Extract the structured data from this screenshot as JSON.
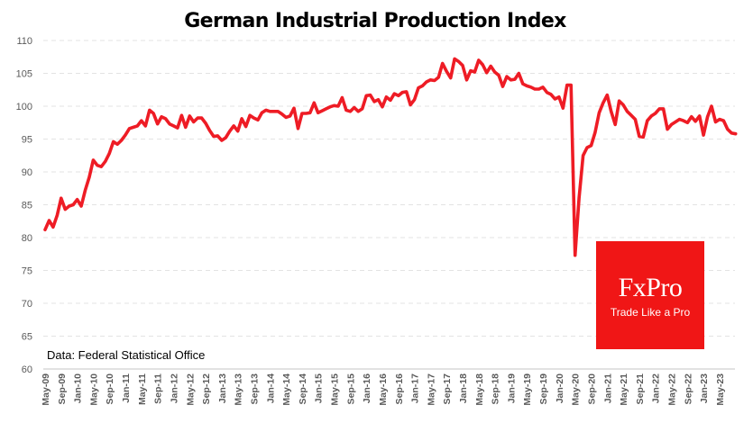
{
  "chart_data": {
    "type": "line",
    "title": "German Industrial Production Index",
    "xlabel": "",
    "ylabel": "",
    "ylim": [
      60,
      110
    ],
    "yticks": [
      60,
      65,
      70,
      75,
      80,
      85,
      90,
      95,
      100,
      105,
      110
    ],
    "grid": true,
    "legend": "none",
    "annotation": "Data: Federal Statistical Office",
    "start": "May-09",
    "frequency": "monthly",
    "x_tick_labels": [
      "May-09",
      "Sep-09",
      "Jan-10",
      "May-10",
      "Sep-10",
      "Jan-11",
      "May-11",
      "Sep-11",
      "Jan-12",
      "May-12",
      "Sep-12",
      "Jan-13",
      "May-13",
      "Sep-13",
      "Jan-14",
      "May-14",
      "Sep-14",
      "Jan-15",
      "May-15",
      "Sep-15",
      "Jan-16",
      "May-16",
      "Sep-16",
      "Jan-17",
      "May-17",
      "Sep-17",
      "Jan-18",
      "May-18",
      "Sep-18",
      "Jan-19",
      "May-19",
      "Sep-19",
      "Jan-20",
      "May-20",
      "Sep-20",
      "Jan-21",
      "May-21",
      "Sep-21",
      "Jan-22",
      "May-22",
      "Sep-22",
      "Jan-23",
      "May-23"
    ],
    "series": [
      {
        "name": "German Industrial Production Index",
        "color": "#ee1c25",
        "values": [
          81.2,
          82.6,
          81.6,
          83.4,
          86.0,
          84.3,
          84.8,
          85.0,
          85.8,
          84.8,
          87.2,
          89.2,
          91.8,
          91.0,
          90.8,
          91.6,
          92.8,
          94.6,
          94.2,
          94.8,
          95.6,
          96.6,
          96.8,
          97.0,
          97.8,
          97.0,
          99.4,
          98.9,
          97.3,
          98.4,
          98.1,
          97.3,
          97.0,
          96.7,
          98.6,
          96.8,
          98.5,
          97.6,
          98.2,
          98.2,
          97.4,
          96.3,
          95.4,
          95.5,
          94.8,
          95.2,
          96.2,
          97.0,
          96.2,
          98.1,
          96.9,
          98.6,
          98.2,
          97.9,
          99.0,
          99.4,
          99.2,
          99.2,
          99.2,
          98.8,
          98.3,
          98.5,
          99.7,
          96.6,
          98.9,
          98.9,
          99.0,
          100.5,
          99.0,
          99.3,
          99.6,
          99.9,
          100.1,
          100.0,
          101.3,
          99.4,
          99.2,
          99.8,
          99.2,
          99.6,
          101.6,
          101.7,
          100.7,
          101.0,
          99.9,
          101.4,
          100.9,
          101.9,
          101.6,
          102.1,
          102.2,
          100.2,
          101.0,
          102.8,
          103.1,
          103.7,
          104.0,
          103.9,
          104.4,
          106.5,
          105.3,
          104.3,
          107.2,
          106.8,
          106.2,
          104.0,
          105.4,
          105.2,
          107.0,
          106.3,
          105.1,
          106.1,
          105.2,
          104.7,
          103.0,
          104.5,
          104.0,
          104.1,
          105.0,
          103.4,
          103.1,
          102.9,
          102.6,
          102.6,
          102.9,
          102.1,
          101.8,
          101.1,
          101.4,
          99.7,
          103.2,
          103.2,
          77.3,
          86.0,
          92.5,
          93.7,
          94.0,
          96.0,
          99.0,
          100.5,
          101.7,
          99.2,
          97.2,
          100.8,
          100.2,
          99.2,
          98.6,
          98.0,
          95.4,
          95.3,
          97.8,
          98.5,
          98.9,
          99.6,
          99.6,
          96.5,
          97.2,
          97.6,
          98.0,
          97.8,
          97.5,
          98.4,
          97.7,
          98.5,
          95.6,
          98.4,
          100.0,
          97.6,
          98.0,
          97.8,
          96.5,
          95.9,
          95.8
        ]
      }
    ]
  },
  "source_note": "Data: Federal Statistical Office",
  "logo": {
    "name": "FxPro",
    "tagline": "Trade Like a Pro",
    "background": "#f01616"
  }
}
